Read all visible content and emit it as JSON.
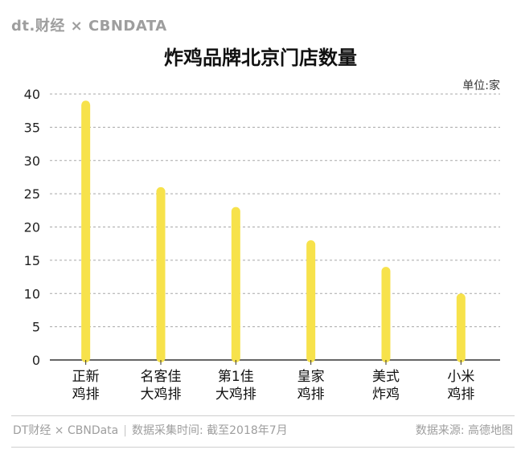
{
  "header": {
    "logo_text": "dt.财经 × CBNDATA"
  },
  "chart_data": {
    "type": "bar",
    "title": "炸鸡品牌北京门店数量",
    "unit_label": "单位:家",
    "categories": [
      [
        "正新",
        "鸡排"
      ],
      [
        "名客佳",
        "大鸡排"
      ],
      [
        "第1佳",
        "大鸡排"
      ],
      [
        "皇家",
        "鸡排"
      ],
      [
        "美式",
        "炸鸡"
      ],
      [
        "小米",
        "鸡排"
      ]
    ],
    "values": [
      39,
      26,
      23,
      18,
      14,
      10
    ],
    "ylim": [
      0,
      40
    ],
    "yticks": [
      0,
      5,
      10,
      15,
      20,
      25,
      30,
      35,
      40
    ],
    "grid": true,
    "bar_color": "#f7e24b",
    "grid_color": "#a8a8a8",
    "axis_color": "#333333"
  },
  "footer": {
    "brand": "DT财经 × CBNData",
    "collection_time": "数据采集时间: 截至2018年7月",
    "source": "数据来源: 高德地图"
  }
}
